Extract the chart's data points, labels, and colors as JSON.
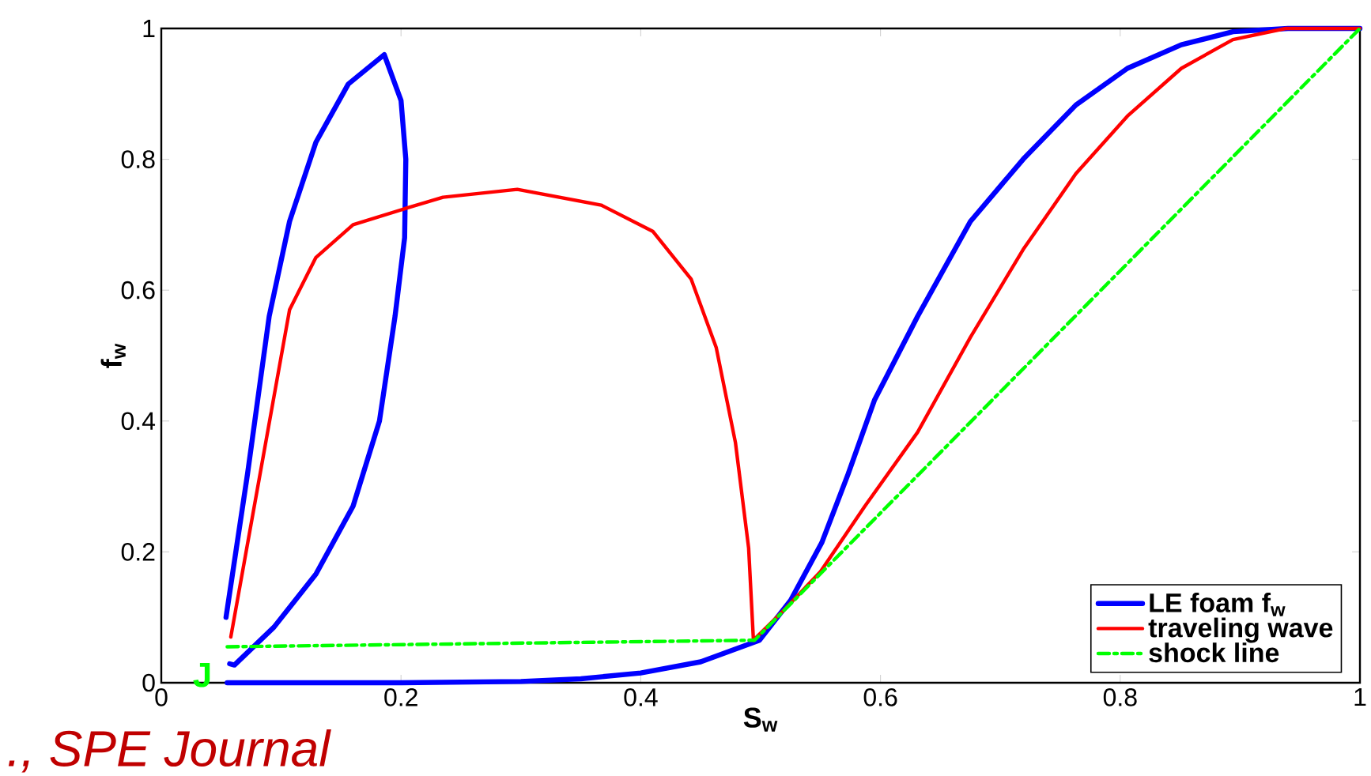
{
  "chart_data": {
    "type": "line",
    "xlabel": "S$_{w}$",
    "ylabel": "f$_{w}$",
    "xlim": [
      0,
      1
    ],
    "ylim": [
      0,
      1
    ],
    "xticks": [
      0,
      0.2,
      0.4,
      0.6,
      0.8,
      1
    ],
    "yticks": [
      0,
      0.2,
      0.4,
      0.6,
      0.8,
      1
    ],
    "grid": false,
    "legend": "bottom right",
    "marker": "none",
    "series": [
      {
        "name": "LE foam f$_{w}$",
        "color": "#0000ff",
        "line_style": "solid",
        "x": [
          0.054,
          0.072,
          0.09,
          0.107,
          0.129,
          0.156,
          0.186,
          0.2,
          0.204,
          0.203,
          0.195,
          0.182,
          0.16,
          0.129,
          0.094,
          0.061,
          0.057,
          null,
          0.055,
          0.2,
          0.3,
          0.35,
          0.4,
          0.45,
          0.499,
          0.525,
          0.551,
          0.573,
          0.595,
          0.631,
          0.675,
          0.719,
          0.763,
          0.806,
          0.851,
          0.894,
          0.94,
          1.0
        ],
        "values": [
          0.1,
          0.32,
          0.56,
          0.705,
          0.826,
          0.915,
          0.96,
          0.89,
          0.8,
          0.68,
          0.56,
          0.4,
          0.27,
          0.166,
          0.085,
          0.027,
          0.029,
          null,
          0.0,
          0.0,
          0.002,
          0.006,
          0.015,
          0.032,
          0.065,
          0.126,
          0.214,
          0.319,
          0.432,
          0.56,
          0.705,
          0.8,
          0.883,
          0.939,
          0.975,
          0.995,
          1.0,
          1.0
        ]
      },
      {
        "name": "traveling wave",
        "color": "#ff0000",
        "line_style": "solid",
        "x": [
          0.058,
          0.107,
          0.129,
          0.16,
          0.204,
          0.235,
          0.297,
          0.367,
          0.41,
          0.442,
          0.463,
          0.479,
          0.49,
          0.494,
          0.52,
          0.55,
          0.587,
          0.631,
          0.675,
          0.719,
          0.763,
          0.806,
          0.851,
          0.894,
          0.938,
          1.0
        ],
        "values": [
          0.07,
          0.57,
          0.65,
          0.7,
          0.725,
          0.742,
          0.754,
          0.73,
          0.69,
          0.617,
          0.512,
          0.367,
          0.206,
          0.065,
          0.112,
          0.17,
          0.27,
          0.383,
          0.528,
          0.662,
          0.778,
          0.866,
          0.939,
          0.983,
          1.0,
          1.0
        ]
      },
      {
        "name": "shock line",
        "color": "#00ff00",
        "line_style": "dashdot",
        "x": [
          0.055,
          0.495,
          1.0
        ],
        "values": [
          0.055,
          0.065,
          1.0
        ]
      }
    ],
    "annotations": [
      "J",
      "., SPE Journal"
    ]
  }
}
